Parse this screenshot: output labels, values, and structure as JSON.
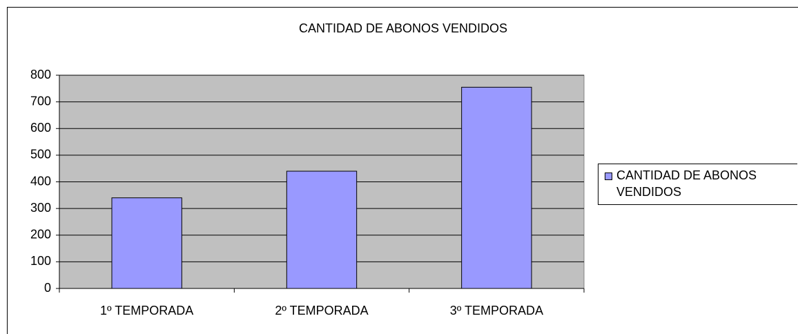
{
  "chart_data": {
    "type": "bar",
    "title": "CANTIDAD DE ABONOS VENDIDOS",
    "categories": [
      "1º TEMPORADA",
      "2º TEMPORADA",
      "3º TEMPORADA"
    ],
    "series": [
      {
        "name": "CANTIDAD DE ABONOS VENDIDOS",
        "color": "#9999ff",
        "values": [
          340,
          440,
          755
        ]
      }
    ],
    "ylim": [
      0,
      800
    ],
    "yticks": [
      0,
      100,
      200,
      300,
      400,
      500,
      600,
      700,
      800
    ],
    "grid": true,
    "legend": "right",
    "plot_background": "#c0c0c0"
  }
}
